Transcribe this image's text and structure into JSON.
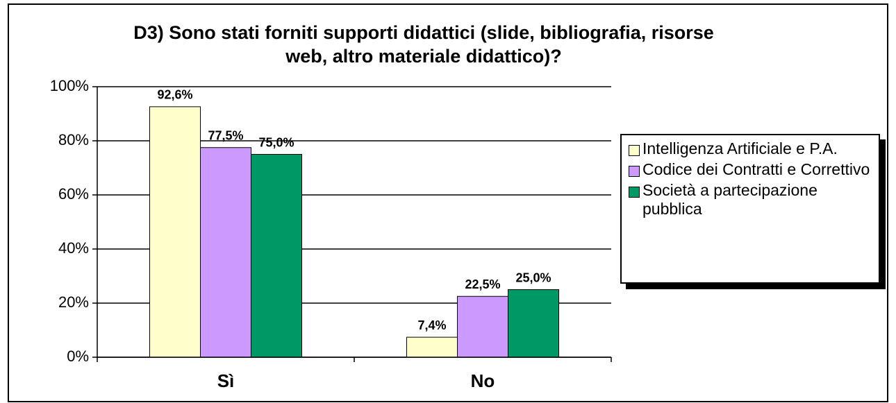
{
  "chart_data": {
    "type": "bar",
    "title": "D3) Sono stati forniti supporti didattici (slide, bibliografia, risorse web, altro materiale didattico)?",
    "categories": [
      "Sì",
      "No"
    ],
    "series": [
      {
        "name": "Intelligenza Artificiale e P.A.",
        "color": "#ffffcc",
        "values": [
          92.6,
          7.4
        ],
        "value_labels": [
          "92,6%",
          "7,4%"
        ]
      },
      {
        "name": "Codice dei Contratti e Correttivo",
        "color": "#cc99ff",
        "values": [
          77.5,
          22.5
        ],
        "value_labels": [
          "77,5%",
          "22,5%"
        ]
      },
      {
        "name": "Società a partecipazione pubblica",
        "color": "#009966",
        "values": [
          75.0,
          25.0
        ],
        "value_labels": [
          "75,0%",
          "25,0%"
        ]
      }
    ],
    "ylim": [
      0,
      100
    ],
    "yticks": [
      {
        "value": 0,
        "label": "0%"
      },
      {
        "value": 20,
        "label": "20%"
      },
      {
        "value": 40,
        "label": "40%"
      },
      {
        "value": 60,
        "label": "60%"
      },
      {
        "value": 80,
        "label": "80%"
      },
      {
        "value": 100,
        "label": "100%"
      }
    ],
    "grid": true,
    "legend": "right"
  }
}
